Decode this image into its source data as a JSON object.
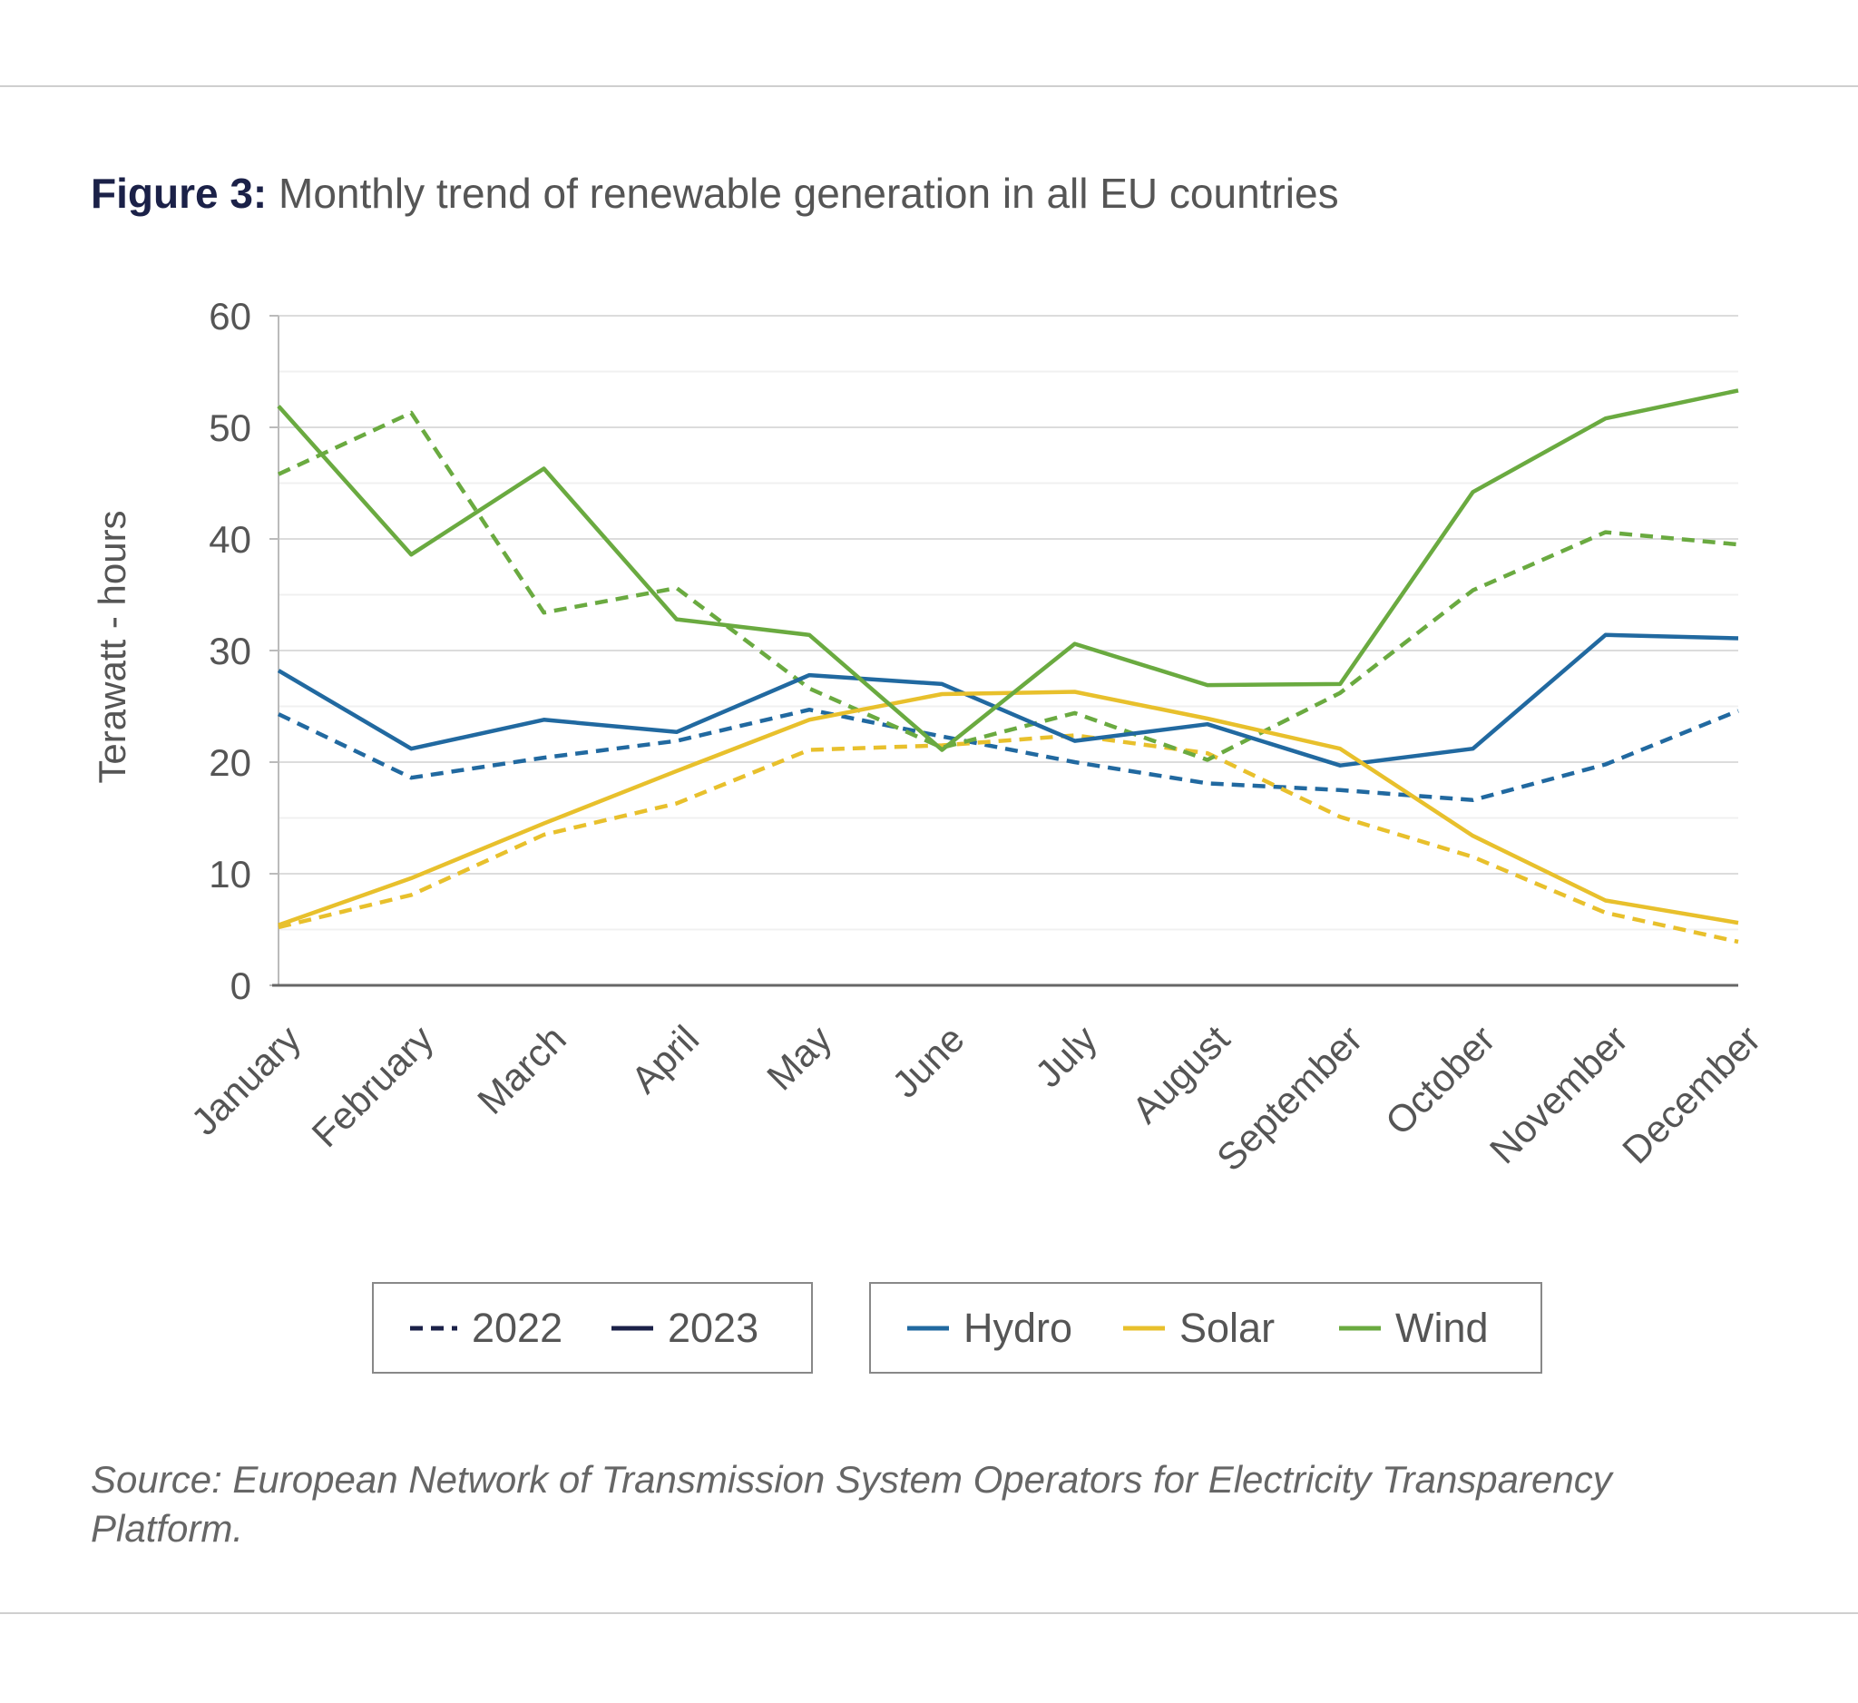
{
  "figure": {
    "label": "Figure 3:",
    "title": "Monthly trend of renewable generation in all EU countries",
    "source": "Source: European Network of Transmission System Operators for Electricity Transparency Platform."
  },
  "legend": {
    "years": [
      {
        "label": "2022",
        "style": "dashed",
        "color": "#1b2148"
      },
      {
        "label": "2023",
        "style": "solid",
        "color": "#1b2148"
      }
    ],
    "types": [
      {
        "label": "Hydro",
        "color": "#2169a0"
      },
      {
        "label": "Solar",
        "color": "#e8c02c"
      },
      {
        "label": "Wind",
        "color": "#6aaa40"
      }
    ]
  },
  "chart_data": {
    "type": "line",
    "title": "Monthly trend of renewable generation in all EU countries",
    "xlabel": "",
    "ylabel": "Terawatt - hours",
    "ylim": [
      0,
      60
    ],
    "yticks": [
      0,
      10,
      20,
      30,
      40,
      50,
      60
    ],
    "grid": true,
    "categories": [
      "January",
      "February",
      "March",
      "April",
      "May",
      "June",
      "July",
      "August",
      "September",
      "October",
      "November",
      "December"
    ],
    "series": [
      {
        "name": "Hydro 2022",
        "type": "Hydro",
        "year": "2022",
        "style": "dashed",
        "color": "#2169a0",
        "values": [
          24.3,
          18.6,
          20.4,
          21.9,
          24.7,
          22.3,
          20.0,
          18.1,
          17.5,
          16.6,
          19.8,
          24.6
        ]
      },
      {
        "name": "Hydro 2023",
        "type": "Hydro",
        "year": "2023",
        "style": "solid",
        "color": "#2169a0",
        "values": [
          28.2,
          21.2,
          23.8,
          22.7,
          27.8,
          27.0,
          21.9,
          23.4,
          19.7,
          21.2,
          31.4,
          31.1
        ]
      },
      {
        "name": "Solar 2022",
        "type": "Solar",
        "year": "2022",
        "style": "dashed",
        "color": "#e8c02c",
        "values": [
          5.2,
          8.1,
          13.5,
          16.3,
          21.1,
          21.5,
          22.4,
          20.8,
          15.1,
          11.5,
          6.5,
          3.9
        ]
      },
      {
        "name": "Solar 2023",
        "type": "Solar",
        "year": "2023",
        "style": "solid",
        "color": "#e8c02c",
        "values": [
          5.4,
          9.6,
          14.5,
          19.2,
          23.8,
          26.1,
          26.3,
          23.9,
          21.2,
          13.4,
          7.6,
          5.6
        ]
      },
      {
        "name": "Wind 2022",
        "type": "Wind",
        "year": "2022",
        "style": "dashed",
        "color": "#6aaa40",
        "values": [
          45.8,
          51.3,
          33.4,
          35.6,
          26.6,
          21.3,
          24.4,
          20.2,
          26.2,
          35.4,
          40.6,
          39.5
        ]
      },
      {
        "name": "Wind 2023",
        "type": "Wind",
        "year": "2023",
        "style": "solid",
        "color": "#6aaa40",
        "values": [
          51.9,
          38.6,
          46.3,
          32.8,
          31.4,
          21.1,
          30.6,
          26.9,
          27.0,
          44.2,
          50.8,
          53.3
        ]
      }
    ]
  }
}
